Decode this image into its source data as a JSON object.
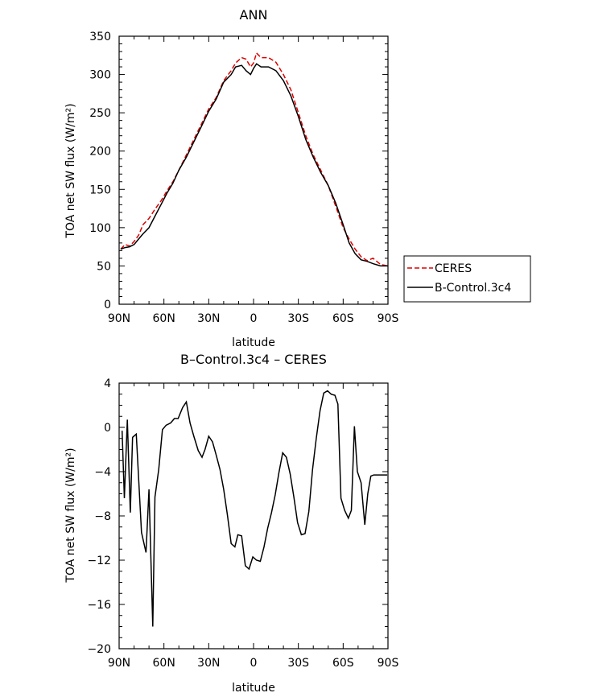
{
  "chart_data": [
    {
      "type": "line",
      "title": "ANN",
      "xlabel": "latitude",
      "ylabel": "TOA net SW flux (W/m²)",
      "xlim": [
        90,
        -90
      ],
      "ylim": [
        0,
        350
      ],
      "x_ticks": [
        90,
        60,
        30,
        0,
        -30,
        -60,
        -90
      ],
      "x_tick_labels": [
        "90N",
        "60N",
        "30N",
        "0",
        "30S",
        "60S",
        "90S"
      ],
      "y_ticks": [
        0,
        50,
        100,
        150,
        200,
        250,
        300,
        350
      ],
      "y_tick_labels": [
        "0",
        "50",
        "100",
        "150",
        "200",
        "250",
        "300",
        "350"
      ],
      "legend_position": "outside-right",
      "series": [
        {
          "name": "CERES",
          "color": "#dd0000",
          "dash": true,
          "x": [
            89,
            86,
            83,
            80,
            77,
            74,
            70,
            66,
            62,
            58,
            54,
            50,
            45,
            40,
            35,
            30,
            25,
            20,
            15,
            12,
            8,
            5,
            2,
            0,
            -2,
            -5,
            -10,
            -15,
            -20,
            -25,
            -30,
            -35,
            -40,
            -45,
            -50,
            -55,
            -60,
            -64,
            -68,
            -72,
            -76,
            -80,
            -85,
            -90
          ],
          "y": [
            72,
            78,
            76,
            82,
            90,
            104,
            112,
            124,
            135,
            148,
            160,
            175,
            195,
            215,
            235,
            255,
            270,
            292,
            305,
            315,
            322,
            320,
            310,
            315,
            328,
            322,
            322,
            316,
            300,
            280,
            250,
            220,
            195,
            175,
            155,
            128,
            100,
            85,
            72,
            62,
            57,
            60,
            52,
            50
          ]
        },
        {
          "name": "B-Control.3c4",
          "color": "#000000",
          "dash": false,
          "x": [
            89,
            86,
            83,
            80,
            77,
            74,
            70,
            66,
            62,
            58,
            54,
            50,
            45,
            40,
            35,
            30,
            25,
            20,
            15,
            12,
            8,
            5,
            2,
            0,
            -2,
            -5,
            -10,
            -15,
            -20,
            -25,
            -30,
            -35,
            -40,
            -45,
            -50,
            -55,
            -60,
            -64,
            -68,
            -72,
            -76,
            -80,
            -85,
            -90
          ],
          "y": [
            72,
            74,
            75,
            78,
            85,
            92,
            100,
            115,
            130,
            145,
            158,
            175,
            192,
            212,
            232,
            252,
            268,
            290,
            300,
            310,
            312,
            305,
            300,
            308,
            314,
            310,
            310,
            305,
            292,
            272,
            245,
            215,
            192,
            172,
            155,
            132,
            104,
            80,
            66,
            58,
            56,
            53,
            50,
            50
          ]
        }
      ]
    },
    {
      "type": "line",
      "title": "B–Control.3c4 – CERES",
      "xlabel": "latitude",
      "ylabel": "TOA net SW flux (W/m²)",
      "xlim": [
        90,
        -90
      ],
      "ylim": [
        -20,
        4
      ],
      "x_ticks": [
        90,
        60,
        30,
        0,
        -30,
        -60,
        -90
      ],
      "x_tick_labels": [
        "90N",
        "60N",
        "30N",
        "0",
        "30S",
        "60S",
        "90S"
      ],
      "y_ticks": [
        -20,
        -16,
        -12,
        -8,
        -4,
        0,
        4
      ],
      "y_tick_labels": [
        "−20",
        "−16",
        "−12",
        "−8",
        "−4",
        "0",
        "4"
      ],
      "series": [
        {
          "color": "#000000",
          "dash": false,
          "x": [
            88,
            86.5,
            84.5,
            82.5,
            81,
            78.5,
            75,
            72,
            70,
            67.5,
            66,
            63.5,
            61,
            58.5,
            55.5,
            53,
            50.5,
            47.5,
            45,
            42.5,
            40,
            37,
            34.5,
            32.5,
            30,
            27.5,
            25,
            22.5,
            20,
            17.5,
            15,
            12.5,
            10.5,
            8,
            5.5,
            3,
            0.5,
            -2,
            -4.5,
            -7,
            -9.5,
            -12,
            -14.5,
            -17,
            -19.5,
            -22,
            -24.5,
            -27,
            -29.5,
            -32,
            -34.5,
            -37,
            -39.5,
            -42,
            -44.5,
            -47,
            -49.5,
            -52,
            -54.5,
            -56.5,
            -58.5,
            -61,
            -63.5,
            -65.5,
            -67.5,
            -69.5,
            -72,
            -74.5,
            -76.5,
            -78.5,
            -80.5,
            -82.5,
            -85,
            -87.5,
            -89.5
          ],
          "y": [
            -0.3,
            -6.4,
            0.7,
            -7.7,
            -0.9,
            -0.6,
            -9.5,
            -11.3,
            -5.6,
            -18.0,
            -6.3,
            -3.8,
            -0.2,
            0.2,
            0.4,
            0.8,
            0.8,
            1.8,
            2.3,
            0.4,
            -0.8,
            -2.1,
            -2.7,
            -2.0,
            -0.8,
            -1.3,
            -2.5,
            -3.8,
            -5.6,
            -7.9,
            -10.5,
            -10.8,
            -9.7,
            -9.8,
            -12.5,
            -12.8,
            -11.7,
            -12.0,
            -12.1,
            -10.8,
            -9.1,
            -7.7,
            -6.1,
            -4.1,
            -2.3,
            -2.7,
            -4.2,
            -6.3,
            -8.6,
            -9.7,
            -9.6,
            -7.6,
            -3.8,
            -1.0,
            1.5,
            3.1,
            3.3,
            3.0,
            2.9,
            2.1,
            -6.4,
            -7.5,
            -8.2,
            -7.5,
            0.1,
            -4.0,
            -5.0,
            -8.8,
            -6.0,
            -4.4,
            -4.3,
            -4.3,
            -4.3,
            -4.3,
            -4.3
          ]
        }
      ]
    }
  ]
}
